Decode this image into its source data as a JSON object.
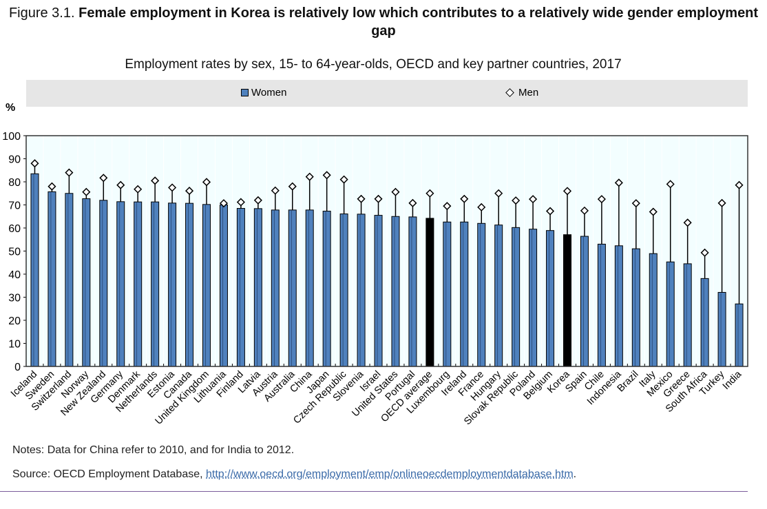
{
  "figure_label": "Figure 3.1.",
  "figure_title": "Female employment in Korea is relatively low which contributes to a relatively wide gender employment gap",
  "notes": "Notes: Data for China refer to 2010, and for India to 2012.",
  "source_prefix": "Source: OECD Employment Database, ",
  "source_link": "http://www.oecd.org/employment/emp/onlineoecdemploymentdatabase.htm",
  "source_suffix": ".",
  "colors": {
    "women": "#4f81bd",
    "highlight": "#000000",
    "plot_bg": "#f3feff",
    "legend_bg": "#e6e6e6"
  },
  "chart_data": {
    "type": "bar",
    "title": "Employment rates by sex, 15- to 64-year-olds, OECD and key partner countries, 2017",
    "ylabel": "%",
    "ylim": [
      0,
      100
    ],
    "yticks": [
      0,
      10,
      20,
      30,
      40,
      50,
      60,
      70,
      80,
      90,
      100
    ],
    "legend": "top",
    "highlighted": [
      "OECD average",
      "Korea"
    ],
    "categories": [
      "Iceland",
      "Sweden",
      "Switzerland",
      "Norway",
      "New Zealand",
      "Germany",
      "Denmark",
      "Netherlands",
      "Estonia",
      "Canada",
      "United Kingdom",
      "Lithuania",
      "Finland",
      "Latvia",
      "Austria",
      "Australia",
      "China",
      "Japan",
      "Czech Republic",
      "Slovenia",
      "Israel",
      "United States",
      "Portugal",
      "OECD average",
      "Luxembourg",
      "Ireland",
      "France",
      "Hungary",
      "Slovak Republic",
      "Poland",
      "Belgium",
      "Korea",
      "Spain",
      "Chile",
      "Indonesia",
      "Brazil",
      "Italy",
      "Mexico",
      "Greece",
      "South Africa",
      "Turkey",
      "India"
    ],
    "series": [
      {
        "name": "Women",
        "marker": "bar",
        "values": [
          83.5,
          75.7,
          75.0,
          72.7,
          72.0,
          71.4,
          71.3,
          71.3,
          70.8,
          70.7,
          70.2,
          70.0,
          68.5,
          68.4,
          67.8,
          67.8,
          67.8,
          67.3,
          66.1,
          66.0,
          65.5,
          65.0,
          64.8,
          64.2,
          62.6,
          62.6,
          62.0,
          61.3,
          60.2,
          59.5,
          58.9,
          57.1,
          56.4,
          53.0,
          52.3,
          51.0,
          48.9,
          45.3,
          44.5,
          38.1,
          32.1,
          27.1
        ]
      },
      {
        "name": "Men",
        "marker": "diamond",
        "values": [
          88.0,
          78.0,
          84.0,
          75.6,
          81.7,
          78.6,
          76.8,
          80.5,
          77.5,
          76.1,
          79.9,
          70.7,
          71.2,
          72.0,
          76.2,
          78.0,
          82.2,
          82.9,
          81.0,
          72.6,
          72.6,
          75.6,
          70.8,
          75.0,
          69.5,
          72.6,
          69.0,
          75.0,
          71.9,
          72.5,
          67.3,
          76.0,
          67.5,
          72.5,
          79.6,
          70.7,
          67.0,
          79.0,
          62.3,
          49.3,
          70.8,
          78.6
        ]
      }
    ]
  }
}
